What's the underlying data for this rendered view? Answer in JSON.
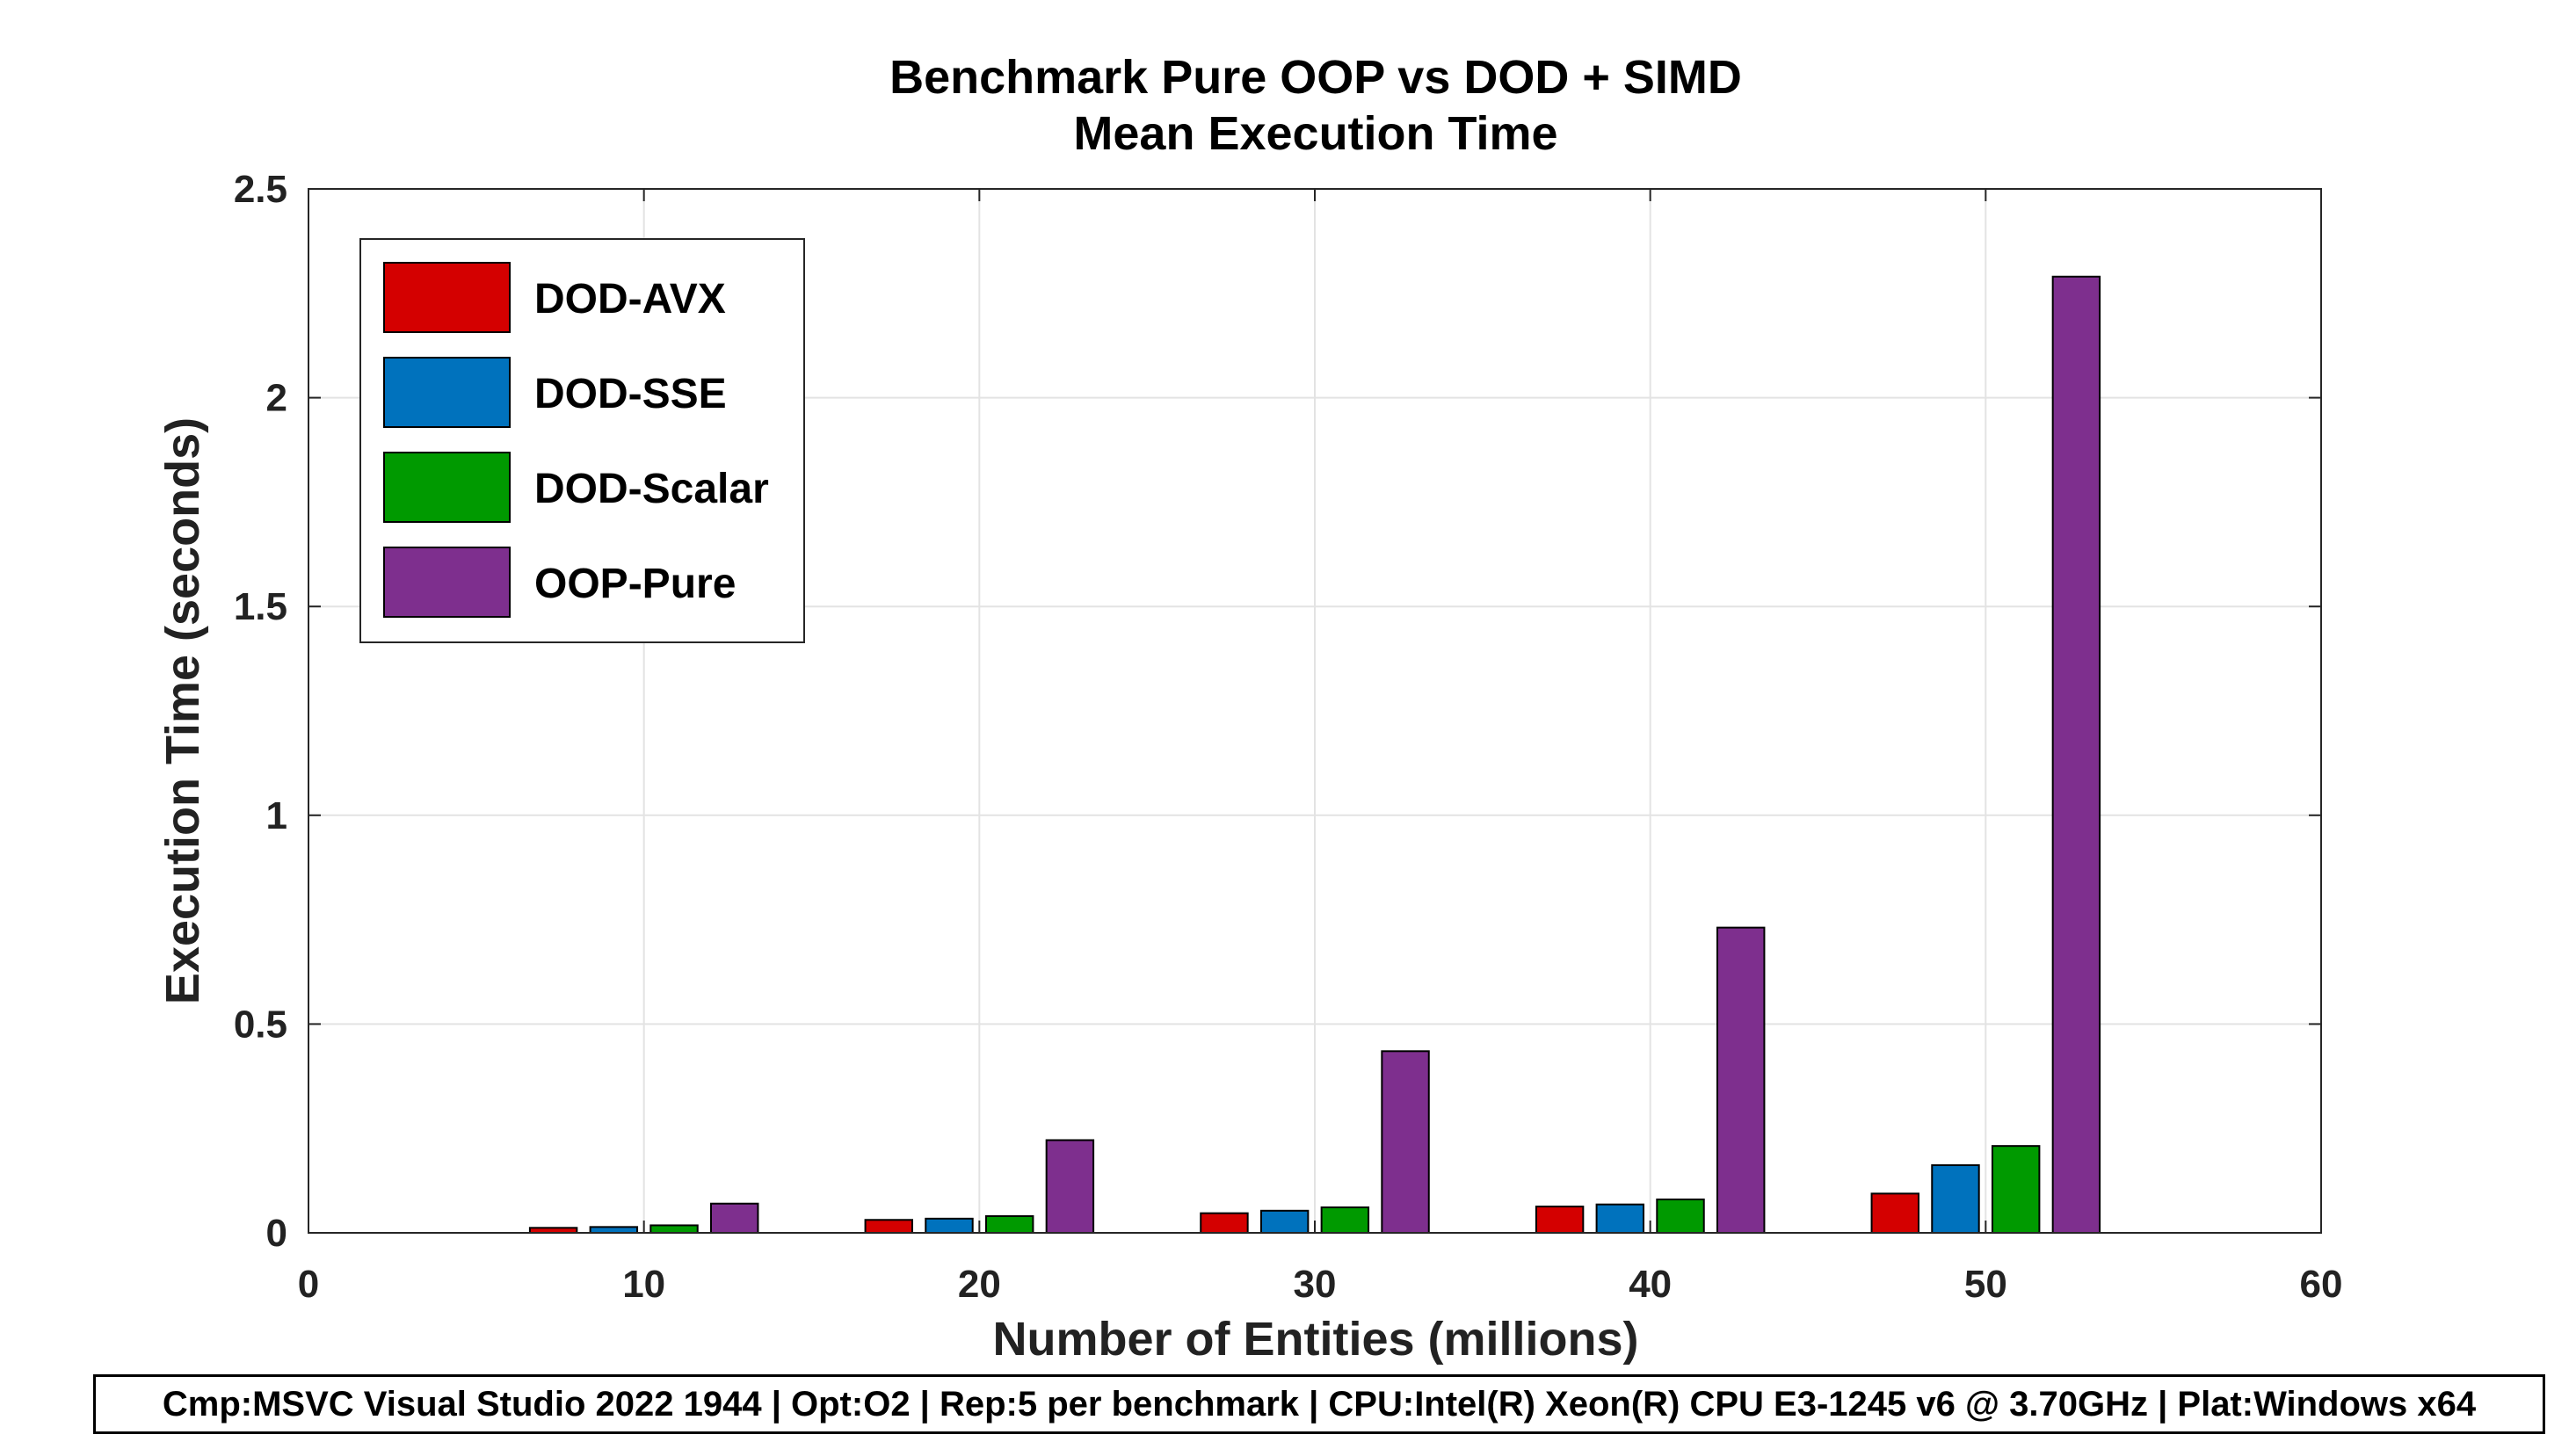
{
  "chart_data": {
    "type": "bar",
    "title": [
      "Benchmark Pure OOP vs DOD + SIMD",
      "Mean Execution Time"
    ],
    "xlabel": "Number of Entities (millions)",
    "ylabel": "Execution Time (seconds)",
    "xlim": [
      0,
      60
    ],
    "ylim": [
      0,
      2.5
    ],
    "xticks": [
      "0",
      "10",
      "20",
      "30",
      "40",
      "50",
      "60"
    ],
    "yticks": [
      "0",
      "0.5",
      "1",
      "1.5",
      "2",
      "2.5"
    ],
    "grid": true,
    "legend_position": "top-left",
    "categories": [
      10,
      20,
      30,
      40,
      50
    ],
    "series": [
      {
        "name": "DOD-AVX",
        "color": "#d40000",
        "values": [
          0.012,
          0.031,
          0.047,
          0.063,
          0.094
        ]
      },
      {
        "name": "DOD-SSE",
        "color": "#0072bd",
        "values": [
          0.014,
          0.034,
          0.053,
          0.068,
          0.162
        ]
      },
      {
        "name": "DOD-Scalar",
        "color": "#009a00",
        "values": [
          0.018,
          0.04,
          0.061,
          0.08,
          0.208
        ]
      },
      {
        "name": "OOP-Pure",
        "color": "#7e2f8e",
        "values": [
          0.07,
          0.222,
          0.435,
          0.731,
          2.29
        ]
      }
    ]
  },
  "footer": {
    "text": "Cmp:MSVC Visual Studio 2022 1944 | Opt:O2 | Rep:5 per benchmark | CPU:Intel(R) Xeon(R) CPU E3-1245 v6 @ 3.70GHz | Plat:Windows x64"
  }
}
